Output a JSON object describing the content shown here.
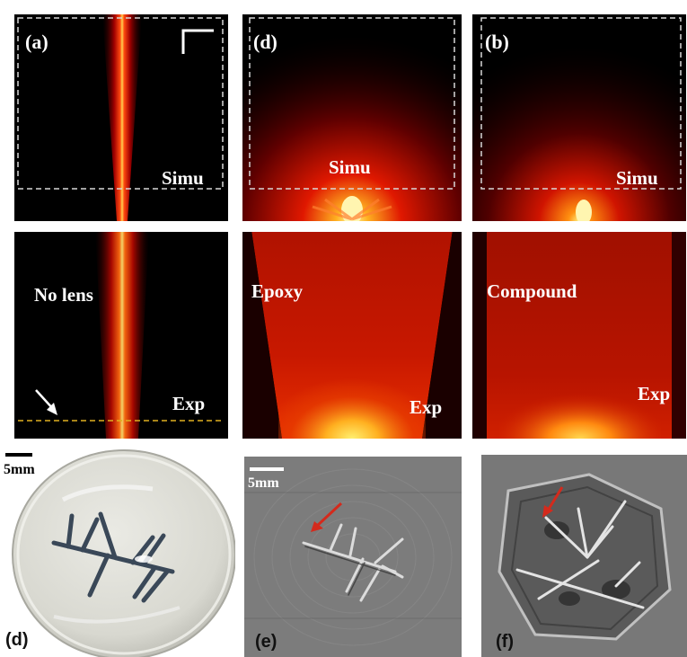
{
  "figure": {
    "top_panels": [
      {
        "label": "(a)",
        "simu_label": "Simu",
        "case_label": "No lens",
        "exp_label": "Exp"
      },
      {
        "label": "(d)",
        "simu_label": "Simu",
        "case_label": "Epoxy",
        "exp_label": "Exp"
      },
      {
        "label": "(b)",
        "simu_label": "Simu",
        "case_label": "Compound",
        "exp_label": "Exp"
      }
    ],
    "bottom_panels": [
      {
        "label": "(d)",
        "scale_bar": "5mm"
      },
      {
        "label": "(e)",
        "scale_bar": "5mm"
      },
      {
        "label": "(f)"
      }
    ],
    "colors": {
      "beam_core": "#fff27a",
      "beam_mid": "#ff2a00",
      "beam_edge": "#7a0000",
      "arrow_red": "#d42a1c",
      "phantom_line": "#3a4858"
    }
  }
}
